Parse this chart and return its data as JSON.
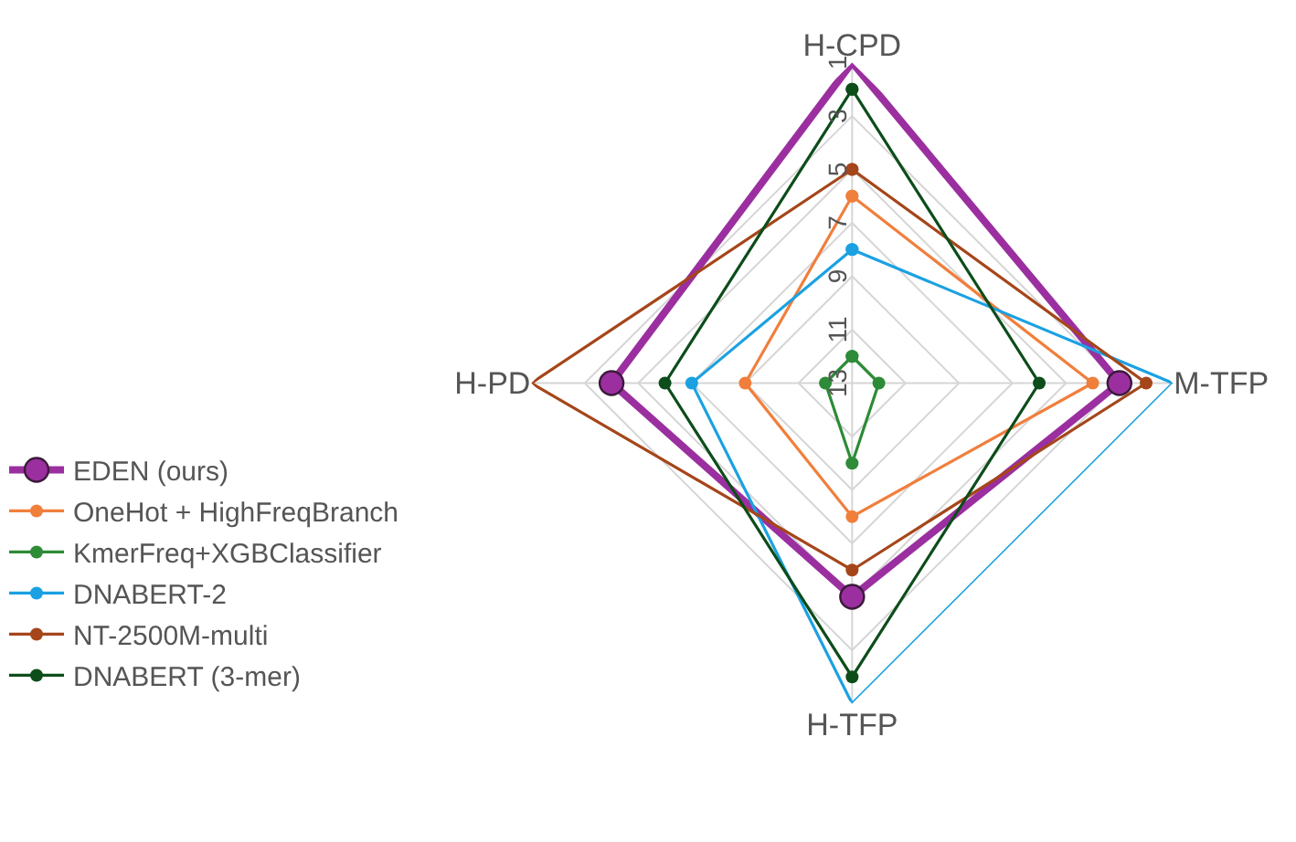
{
  "chart_data": {
    "type": "radar",
    "categories": [
      "H-CPD",
      "M-TFP",
      "H-TFP",
      "H-PD"
    ],
    "ylim": [
      13,
      1
    ],
    "yticks": [
      1,
      3,
      5,
      7,
      9,
      11,
      13
    ],
    "grid": true,
    "legend": "left",
    "marker": "circle",
    "line_style": "solid",
    "series": [
      {
        "name": "EDEN (ours)",
        "color": "#9b2fa0",
        "values": [
          1,
          3,
          5,
          4
        ]
      },
      {
        "name": "OneHot + HighFreqBranch",
        "color": "#f07f3c",
        "values": [
          6,
          4,
          8,
          9
        ]
      },
      {
        "name": "KmerFreq+XGBClassifier",
        "color": "#2e8b37",
        "values": [
          12,
          12,
          10,
          12
        ]
      },
      {
        "name": "DNABERT-2",
        "color": "#1ba1e2",
        "values": [
          8,
          1,
          1,
          7
        ]
      },
      {
        "name": "NT-2500M-multi",
        "color": "#a5461a",
        "values": [
          5,
          2,
          6,
          1
        ]
      },
      {
        "name": "DNABERT (3-mer)",
        "color": "#0d4d1a",
        "values": [
          2,
          6,
          2,
          6
        ]
      }
    ]
  }
}
